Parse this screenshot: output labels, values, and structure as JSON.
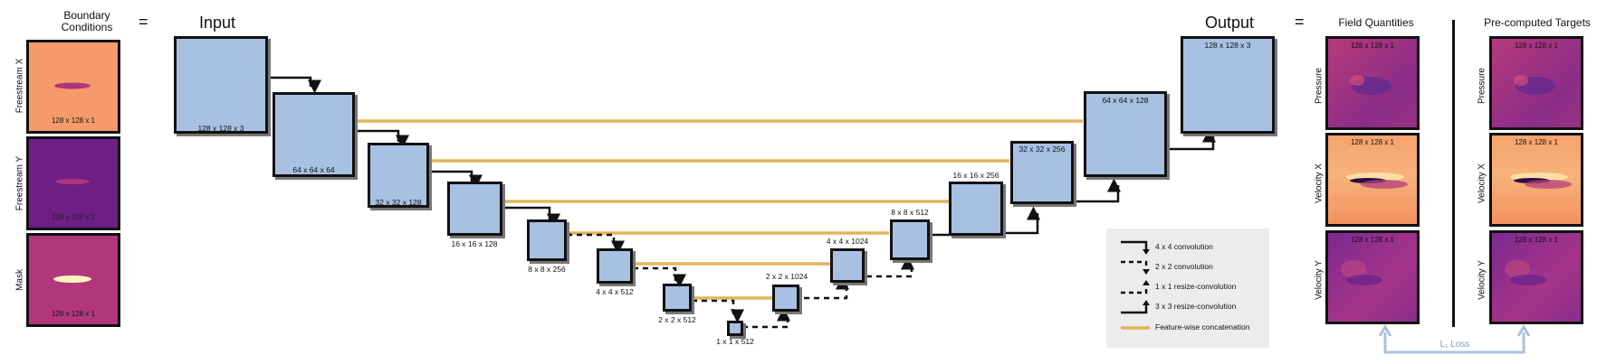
{
  "headers": {
    "boundary_conditions": "Boundary\nConditions",
    "equals_1": "=",
    "input": "Input",
    "output": "Output",
    "equals_2": "=",
    "field_quantities": "Field Quantities",
    "precomputed_targets": "Pre-computed Targets"
  },
  "boundary_panels": [
    {
      "label": "Freestream X",
      "dim": "128 x 128 x 1",
      "color": "#f49a6b"
    },
    {
      "label": "Freestream Y",
      "dim": "128 x 128 x 1",
      "color": "#6e1f86"
    },
    {
      "label": "Mask",
      "dim": "128 x 128 x 1",
      "color": "#b2367c"
    }
  ],
  "field_panels": [
    {
      "label": "Pressure",
      "dim": "128 x 128 x 1"
    },
    {
      "label": "Velocity X",
      "dim": "128 x 128 x 1"
    },
    {
      "label": "Velocity Y",
      "dim": "128 x 128 x 1"
    }
  ],
  "target_panels": [
    {
      "label": "Pressure",
      "dim": "128 x 128 x 1"
    },
    {
      "label": "Velocity X",
      "dim": "128 x 128 x 1"
    },
    {
      "label": "Velocity Y",
      "dim": "128 x 128 x 1"
    }
  ],
  "loss_label": "L₁ Loss",
  "blocks": [
    {
      "id": "input",
      "dim": "128 x 128 x 3"
    },
    {
      "id": "enc1",
      "dim": "64 x 64 x 64"
    },
    {
      "id": "enc2",
      "dim": "32 x 32 x 128"
    },
    {
      "id": "enc3",
      "dim": "16 x 16 x 128"
    },
    {
      "id": "enc4",
      "dim": "8 x 8 x 256"
    },
    {
      "id": "enc5",
      "dim": "4 x 4 x 512"
    },
    {
      "id": "enc6",
      "dim": "2 x 2 x 512"
    },
    {
      "id": "bottleneck",
      "dim": "1 x 1 x 512"
    },
    {
      "id": "dec6",
      "dim": "2 x 2 x 1024"
    },
    {
      "id": "dec5",
      "dim": "4 x 4 x 1024"
    },
    {
      "id": "dec4",
      "dim": "8 x 8 x 512"
    },
    {
      "id": "dec3",
      "dim": "16 x 16 x 256"
    },
    {
      "id": "dec2",
      "dim": "32 x 32 x 256"
    },
    {
      "id": "dec1",
      "dim": "64 x 64 x 128"
    },
    {
      "id": "output",
      "dim": "128 x 128 x 3"
    }
  ],
  "legend": [
    {
      "label": "4 x 4 convolution",
      "style": "solid-down"
    },
    {
      "label": "2 x 2 convolution",
      "style": "dashed-down"
    },
    {
      "label": "1 x 1 resize-convolution",
      "style": "dashed-up"
    },
    {
      "label": "3 x 3 resize-convolution",
      "style": "solid-up"
    },
    {
      "label": "Feature-wise concatenation",
      "style": "concat"
    }
  ],
  "colors": {
    "block_fill": "#a8c1e3",
    "concat_line": "#e0b55a",
    "loss_line": "#a9c1dc",
    "legend_bg": "#ececec"
  }
}
